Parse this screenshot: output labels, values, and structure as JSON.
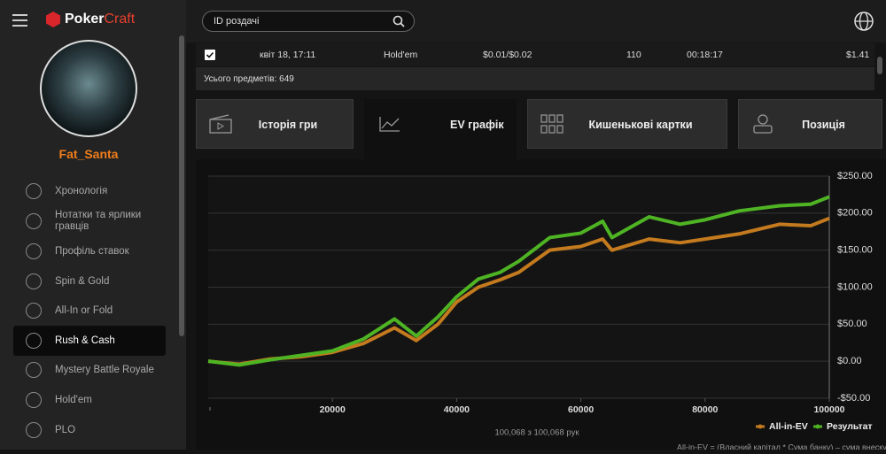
{
  "logo": {
    "brand": "Poker",
    "product": "Craft"
  },
  "user": {
    "name": "Fat_Santa"
  },
  "sidebar": {
    "items": [
      "Хронологія",
      "Нотатки та ярлики гравців",
      "Профіль ставок",
      "Spin & Gold",
      "All-In or Fold",
      "Rush & Cash",
      "Mystery Battle Royale",
      "Hold'em",
      "PLO"
    ],
    "active": 5
  },
  "search": {
    "placeholder": "ID роздачі"
  },
  "table": {
    "rows": [
      [
        "квіт 18, 17:11",
        "Hold'em",
        "$0.01/$0.02",
        "110",
        "00:18:17",
        "$1.41"
      ]
    ],
    "total": "Усього предметів: 649"
  },
  "tabs": {
    "items": [
      "Історія гри",
      "EV графік",
      "Кишенькові картки",
      "Позиція"
    ],
    "active": 1
  },
  "chart_data": {
    "type": "line",
    "x": [
      0,
      5000,
      10000,
      15000,
      20000,
      25000,
      30000,
      33500,
      37000,
      40000,
      43500,
      47000,
      50000,
      55000,
      60000,
      63500,
      65000,
      71000,
      76000,
      80000,
      85500,
      92000,
      97000,
      100000
    ],
    "series": [
      {
        "name": "All-in-EV",
        "color": "#c47a1e",
        "values": [
          0,
          -4,
          3,
          6,
          12,
          24,
          45,
          28,
          50,
          80,
          100,
          110,
          120,
          150,
          155,
          165,
          150,
          165,
          160,
          165,
          172,
          185,
          183,
          193
        ]
      },
      {
        "name": "Результат",
        "color": "#4fb424",
        "values": [
          0,
          -5,
          2,
          8,
          14,
          30,
          57,
          34,
          60,
          87,
          111,
          120,
          135,
          167,
          173,
          189,
          167,
          195,
          185,
          191,
          203,
          210,
          212,
          222
        ]
      }
    ],
    "xlim": [
      0,
      100000
    ],
    "xticks": [
      20000,
      40000,
      60000,
      80000,
      100000
    ],
    "ylim": [
      -50,
      250
    ],
    "yticks": [
      {
        "value": 250,
        "label": "$250.00"
      },
      {
        "value": 200,
        "label": "$200.00"
      },
      {
        "value": 150,
        "label": "$150.00"
      },
      {
        "value": 100,
        "label": "$100.00"
      },
      {
        "value": 50,
        "label": "$50.00"
      },
      {
        "value": 0,
        "label": "$0.00"
      },
      {
        "value": -50,
        "label": "-$50.00"
      }
    ],
    "grid": true,
    "legend": "lower right",
    "counter": "100,068 з 100,068 рук",
    "footnote": "All-in-EV = (Власний капітал * Сума банку) – сума внеску"
  }
}
